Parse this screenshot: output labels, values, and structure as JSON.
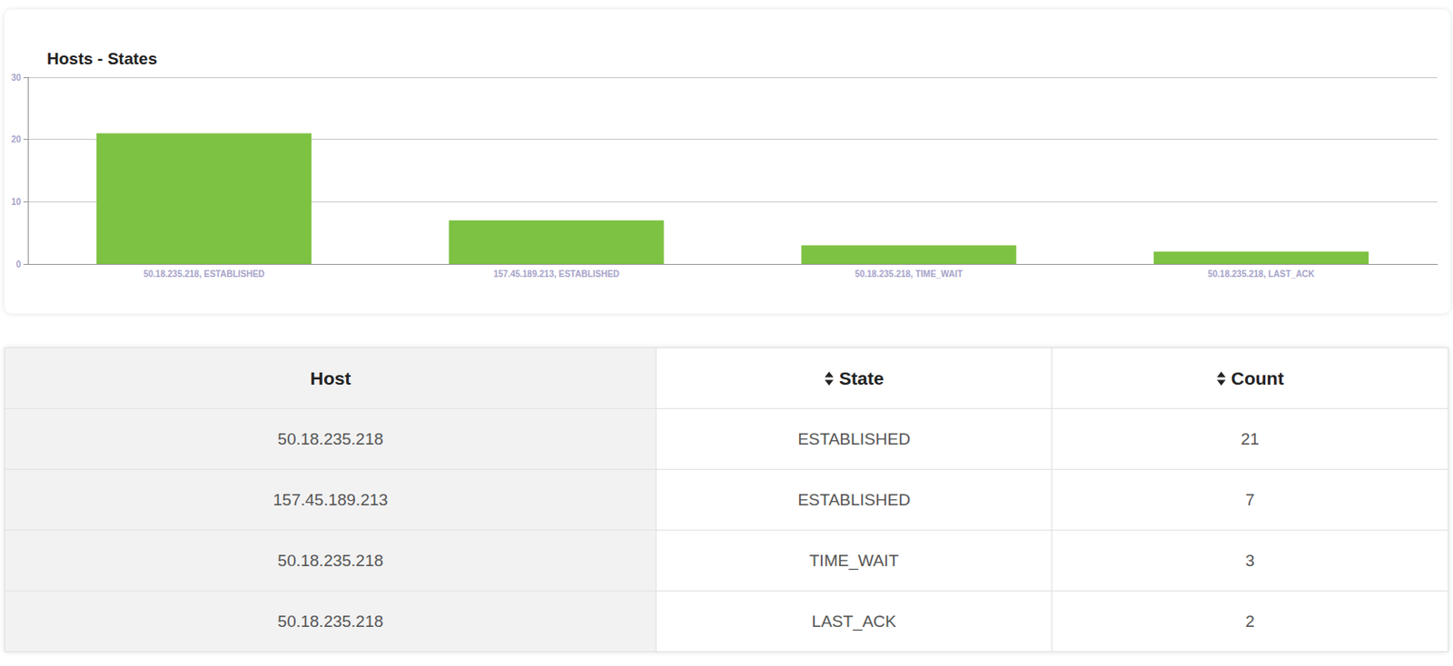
{
  "chart_data": {
    "type": "bar",
    "title": "Hosts - States",
    "categories": [
      "50.18.235.218, ESTABLISHED",
      "157.45.189.213, ESTABLISHED",
      "50.18.235.218, TIME_WAIT",
      "50.18.235.218, LAST_ACK"
    ],
    "values": [
      21,
      7,
      3,
      2
    ],
    "color": "#7dc242",
    "ylim": [
      0,
      30
    ],
    "yticks": [
      0,
      10,
      20,
      30
    ],
    "grid": true
  },
  "table": {
    "columns": [
      "Host",
      "State",
      "Count"
    ],
    "rows": [
      [
        "50.18.235.218",
        "ESTABLISHED",
        21
      ],
      [
        "157.45.189.213",
        "ESTABLISHED",
        7
      ],
      [
        "50.18.235.218",
        "TIME_WAIT",
        3
      ],
      [
        "50.18.235.218",
        "LAST_ACK",
        2
      ]
    ]
  }
}
